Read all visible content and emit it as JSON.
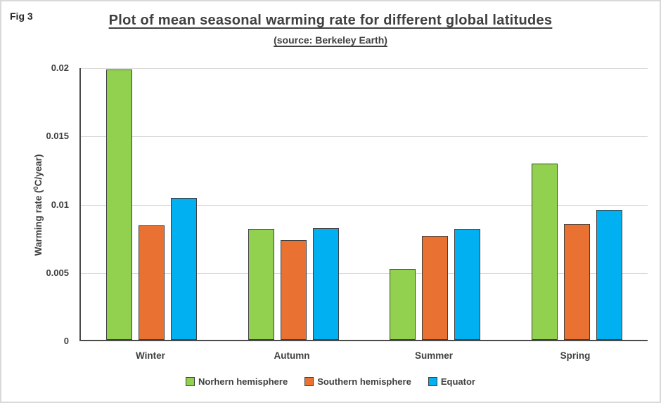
{
  "figure_label": "Fig 3",
  "title": "Plot of mean seasonal warming rate for different global latitudes",
  "subtitle": "(source: Berkeley Earth)",
  "colors": {
    "northern_hemisphere": "#92D050",
    "southern_hemisphere": "#E97132",
    "equator": "#00B0F0",
    "bar_border": "#3F3F3F",
    "gridline": "#D9D9D9",
    "axis_line": "#4A4A4A",
    "text": "#404040",
    "figure_border": "#D9D9D9"
  },
  "chart_data": {
    "type": "bar",
    "title": "Plot of mean seasonal warming rate for different global latitudes",
    "subtitle": "(source: Berkeley Earth)",
    "categories": [
      "Winter",
      "Autumn",
      "Summer",
      "Spring"
    ],
    "series": [
      {
        "name": "Norhern hemisphere",
        "color": "#92D050",
        "values": [
          0.0198,
          0.0081,
          0.0052,
          0.0129
        ]
      },
      {
        "name": "Southern hemisphere",
        "color": "#E97132",
        "values": [
          0.0084,
          0.0073,
          0.0076,
          0.0085
        ]
      },
      {
        "name": "Equator",
        "color": "#00B0F0",
        "values": [
          0.0104,
          0.0082,
          0.0081,
          0.0095
        ]
      }
    ],
    "xlabel": "",
    "ylabel": {
      "prefix": "Warming rate (",
      "sup": "0",
      "suffix": "C/year)"
    },
    "ylim": [
      0,
      0.02
    ],
    "yticks": [
      {
        "value": 0,
        "label": "0"
      },
      {
        "value": 0.005,
        "label": "0.005"
      },
      {
        "value": 0.01,
        "label": "0.01"
      },
      {
        "value": 0.015,
        "label": "0.015"
      },
      {
        "value": 0.02,
        "label": "0.02"
      }
    ],
    "grid": true,
    "legend_position": "bottom"
  }
}
